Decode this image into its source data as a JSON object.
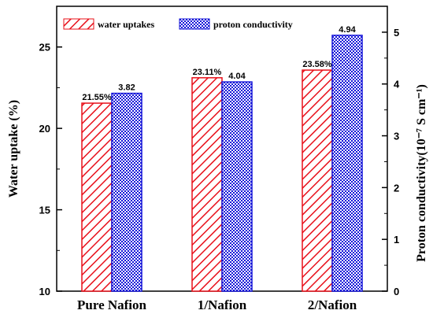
{
  "chart_data": {
    "type": "bar",
    "categories": [
      "Pure Nafion",
      "1/Nafion",
      "2/Nafion"
    ],
    "series": [
      {
        "name": "water uptakes",
        "axis": "left",
        "values": [
          21.55,
          23.11,
          23.58
        ],
        "labels": [
          "21.55%",
          "23.11%",
          "23.58%"
        ],
        "color": "#e8101a",
        "pattern": "diagonal-hatch"
      },
      {
        "name": "proton conductivity",
        "axis": "right",
        "values": [
          3.82,
          4.04,
          4.94
        ],
        "labels": [
          "3.82",
          "4.04",
          "4.94"
        ],
        "color": "#1515d8",
        "pattern": "crosshatch"
      }
    ],
    "ylabel_left": "Water uptake (%)",
    "ylabel_right": "Proton conductivity(10⁻⁷ S cm⁻¹)",
    "ylim_left": [
      10,
      27.5
    ],
    "ylim_right": [
      0,
      5.5
    ],
    "yticks_left": [
      "10",
      "15",
      "20",
      "25"
    ],
    "yticks_right": [
      "0",
      "1",
      "2",
      "3",
      "4",
      "5"
    ],
    "grid": false,
    "legend_position": "top"
  }
}
